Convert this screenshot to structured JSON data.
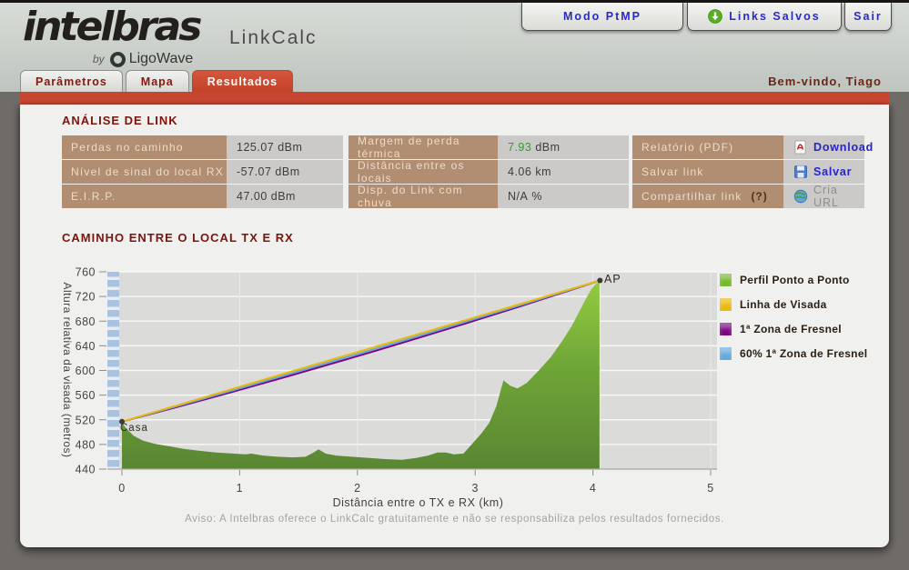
{
  "header": {
    "logo": "intelbras",
    "logo_by": "by",
    "logo_brand": "LigoWave",
    "app_title": "LinkCalc",
    "welcome": "Bem-vindo, Tiago",
    "buttons": [
      {
        "label": "Modo PtMP"
      },
      {
        "label": "Links Salvos"
      },
      {
        "label": "Sair"
      }
    ]
  },
  "tabs": [
    {
      "label": "Parâmetros"
    },
    {
      "label": "Mapa"
    },
    {
      "label": "Resultados"
    }
  ],
  "analysis": {
    "heading": "ANÁLISE DE LINK",
    "table1": [
      {
        "label": "Perdas no caminho",
        "value": "125.07 dBm"
      },
      {
        "label": "Nível de sinal do local RX",
        "value": "-57.07 dBm"
      },
      {
        "label": "E.I.R.P.",
        "value": "47.00 dBm"
      }
    ],
    "table2": [
      {
        "label": "Margem de perda térmica",
        "value": "7.93",
        "unit": " dBm",
        "highlight": "#339933"
      },
      {
        "label": "Distância entre os locais",
        "value": "4.06",
        "unit": " km"
      },
      {
        "label": "Disp. do Link com chuva",
        "value": "N/A",
        "unit": " %"
      }
    ],
    "table3": [
      {
        "label": "Relatório (PDF)",
        "action": "Download",
        "icon": "pdf-icon"
      },
      {
        "label": "Salvar link",
        "action": "Salvar",
        "icon": "floppy-icon"
      },
      {
        "label": "Compartilhar link",
        "label_suffix": "(?)",
        "action": "Cria URL",
        "icon": "globe-icon"
      }
    ]
  },
  "chart_data": {
    "type": "area",
    "title": "CAMINHO ENTRE O LOCAL TX E RX",
    "xlabel": "Distância entre o TX e RX (km)",
    "ylabel": "Altura relativa da visada (metros)",
    "xlim": [
      0,
      5
    ],
    "ylim": [
      440,
      760
    ],
    "xticks": [
      0,
      1,
      2,
      3,
      4,
      5
    ],
    "yticks": [
      760,
      720,
      680,
      640,
      600,
      560,
      520,
      480,
      440
    ],
    "grid": true,
    "legend_position": "right",
    "profile_name": "Perfil Ponto a Ponto",
    "profile": [
      [
        0,
        515
      ],
      [
        0.04,
        505
      ],
      [
        0.1,
        494
      ],
      [
        0.18,
        486
      ],
      [
        0.28,
        481
      ],
      [
        0.4,
        477
      ],
      [
        0.52,
        473
      ],
      [
        0.65,
        470
      ],
      [
        0.8,
        467
      ],
      [
        0.95,
        465
      ],
      [
        1.05,
        464
      ],
      [
        1.1,
        465
      ],
      [
        1.2,
        462
      ],
      [
        1.32,
        460
      ],
      [
        1.45,
        459
      ],
      [
        1.56,
        460
      ],
      [
        1.62,
        466
      ],
      [
        1.67,
        472
      ],
      [
        1.73,
        465
      ],
      [
        1.82,
        462
      ],
      [
        1.95,
        460
      ],
      [
        2.1,
        458
      ],
      [
        2.25,
        456
      ],
      [
        2.38,
        455
      ],
      [
        2.5,
        458
      ],
      [
        2.6,
        462
      ],
      [
        2.68,
        467
      ],
      [
        2.75,
        467
      ],
      [
        2.82,
        464
      ],
      [
        2.9,
        465
      ],
      [
        2.97,
        480
      ],
      [
        3.05,
        497
      ],
      [
        3.12,
        515
      ],
      [
        3.18,
        542
      ],
      [
        3.24,
        584
      ],
      [
        3.3,
        575
      ],
      [
        3.36,
        571
      ],
      [
        3.44,
        580
      ],
      [
        3.54,
        600
      ],
      [
        3.64,
        621
      ],
      [
        3.74,
        648
      ],
      [
        3.82,
        672
      ],
      [
        3.88,
        694
      ],
      [
        3.94,
        716
      ],
      [
        3.99,
        733
      ],
      [
        4.03,
        741
      ],
      [
        4.06,
        744
      ]
    ],
    "points": [
      {
        "label": "Casa",
        "km": 0,
        "m": 517
      },
      {
        "label": "AP",
        "km": 4.06,
        "m": 746
      }
    ],
    "lines": [
      {
        "label": "1ª Zona de Fresnel",
        "color": "#7c0583",
        "sag": 9
      },
      {
        "label": "60% 1ª Zona de Fresnel",
        "color": "#62a8dc",
        "sag": 4.5
      },
      {
        "label": "Linha de Visada",
        "color": "#e9b90b",
        "sag": 0
      }
    ],
    "legend": [
      {
        "label": "Perfil Ponto a Ponto",
        "color": "#76b82a"
      },
      {
        "label": "Linha de Visada",
        "color": "#e9b90b"
      },
      {
        "label": "1ª Zona de Fresnel",
        "color": "#7c0583"
      },
      {
        "label": "60% 1ª Zona de Fresnel",
        "color": "#62a8dc"
      }
    ]
  },
  "footer": {
    "aviso": "Aviso: A Intelbras oferece o LinkCalc gratuitamente e não se responsabiliza pelos resultados fornecidos."
  }
}
